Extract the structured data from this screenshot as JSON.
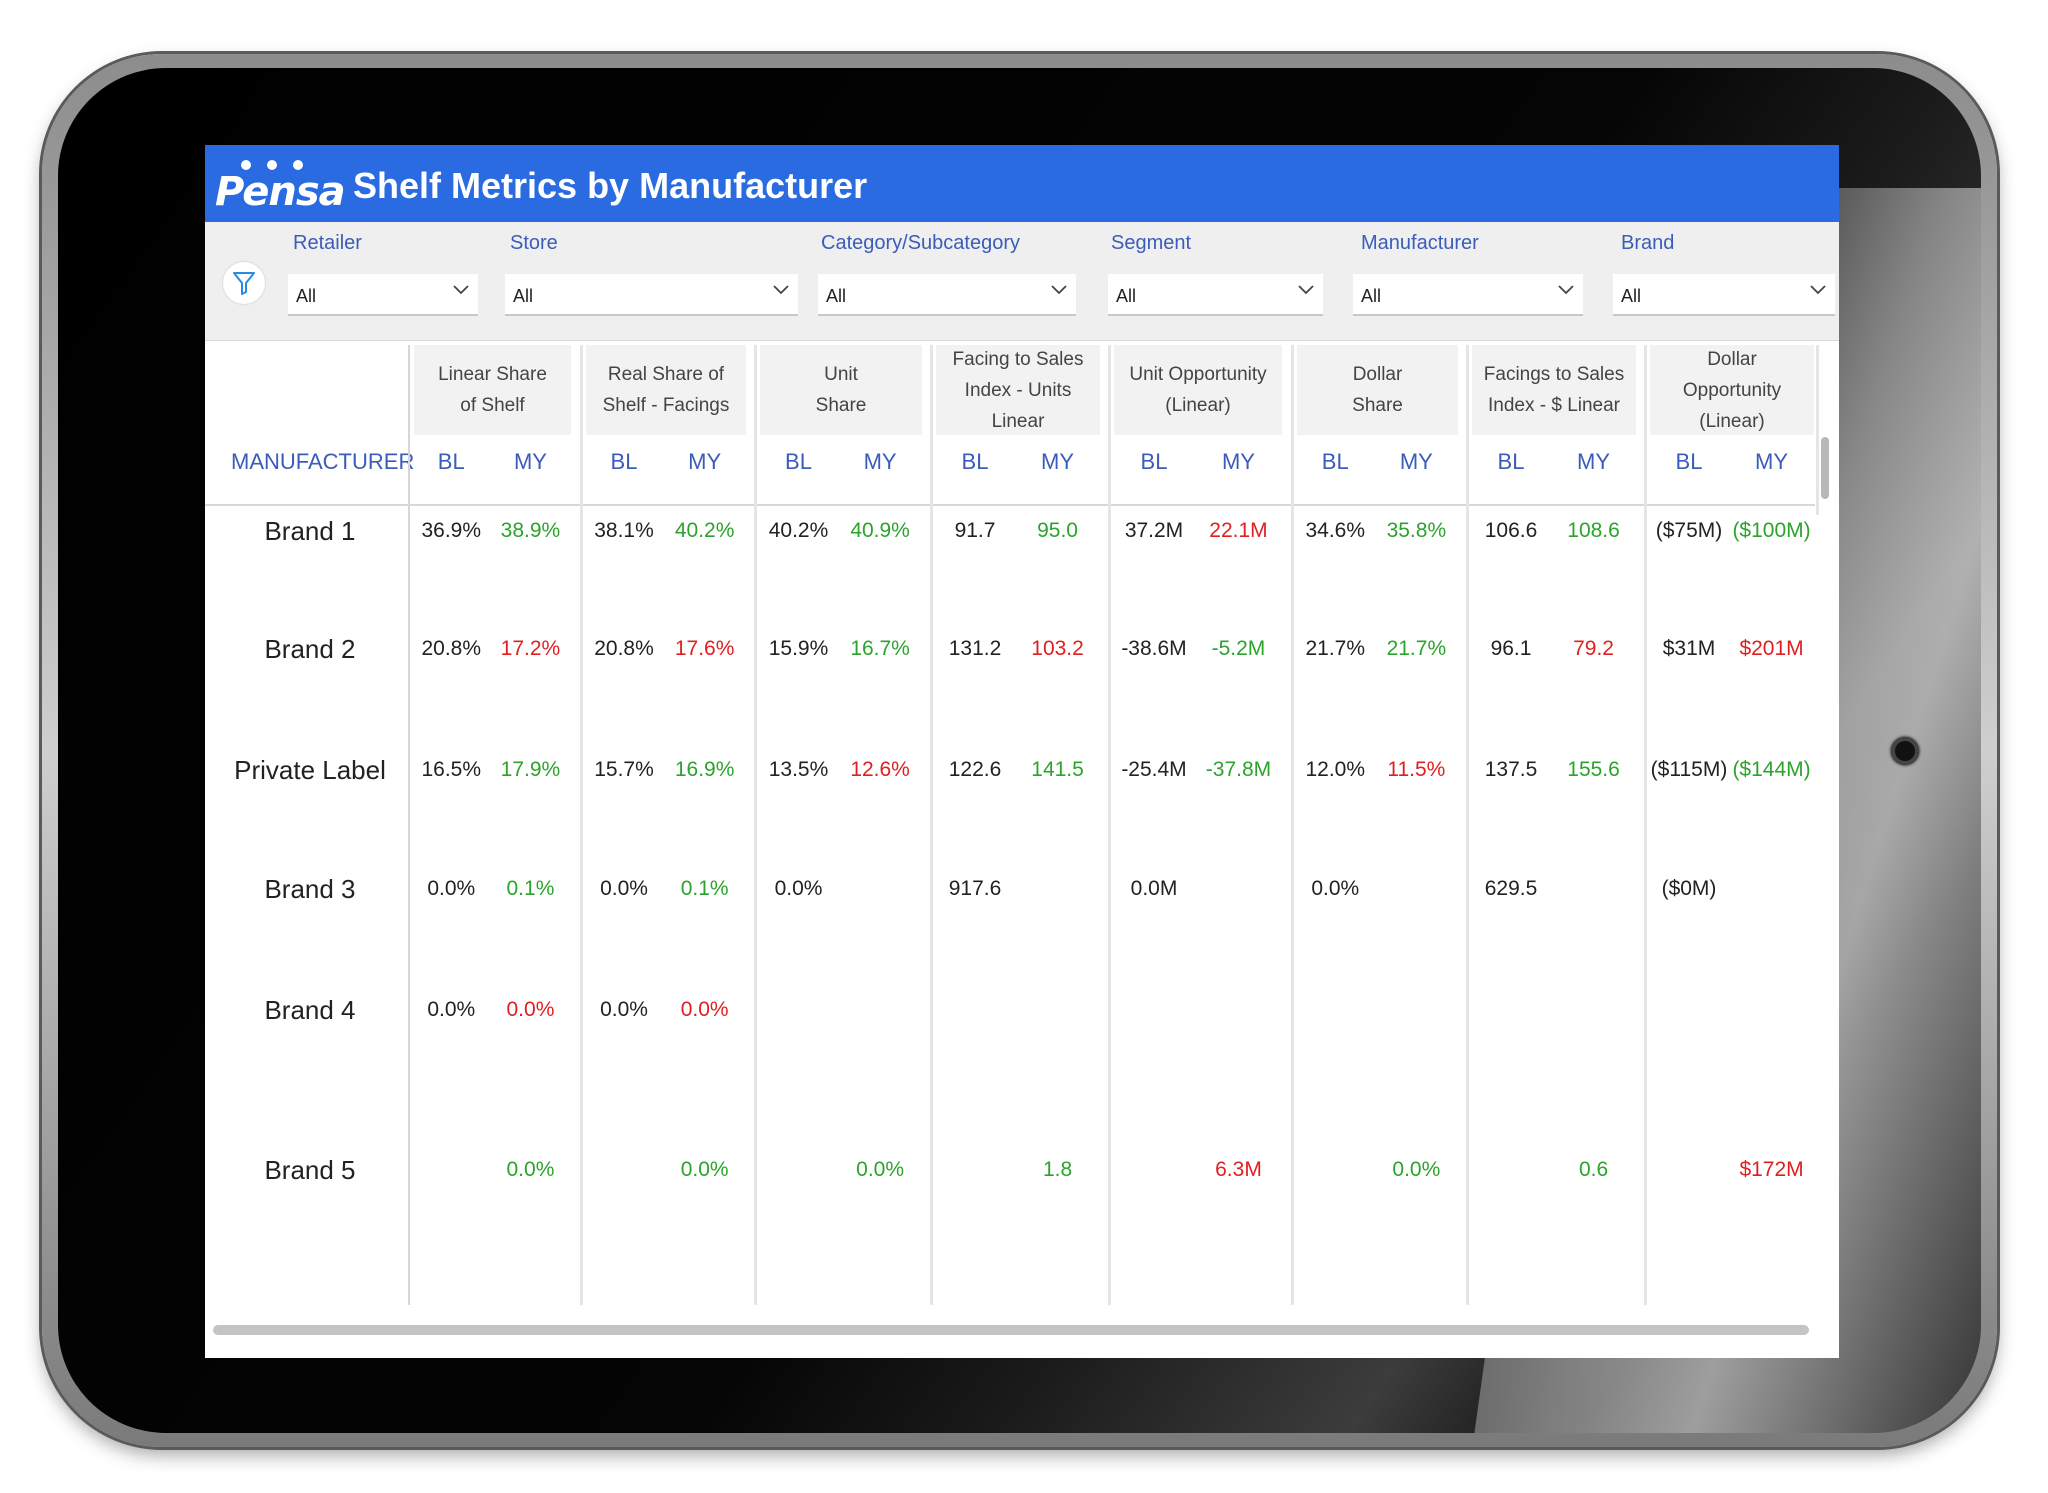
{
  "app": {
    "logo": "Pensa",
    "title": "Shelf Metrics by Manufacturer"
  },
  "filters": [
    {
      "label": "Retailer",
      "value": "All"
    },
    {
      "label": "Store",
      "value": "All"
    },
    {
      "label": "Category/Subcategory",
      "value": "All"
    },
    {
      "label": "Segment",
      "value": "All"
    },
    {
      "label": "Manufacturer",
      "value": "All"
    },
    {
      "label": "Brand",
      "value": "All"
    }
  ],
  "table": {
    "manufacturer_header": "MANUFACTURER",
    "metrics": [
      {
        "line1": "Linear Share",
        "line2": "of Shelf"
      },
      {
        "line1": "Real Share of",
        "line2": "Shelf - Facings"
      },
      {
        "line1": "Unit",
        "line2": "Share"
      },
      {
        "line1": "Facing to Sales",
        "line2": "Index - Units Linear"
      },
      {
        "line1": "Unit Opportunity",
        "line2": "(Linear)"
      },
      {
        "line1": "Dollar",
        "line2": "Share"
      },
      {
        "line1": "Facings to Sales",
        "line2": "Index - $ Linear"
      },
      {
        "line1": "Dollar Opportunity",
        "line2": "(Linear)"
      }
    ],
    "sub_labels": {
      "bl": "BL",
      "my": "MY"
    },
    "rows": [
      {
        "name": "Brand 1",
        "cells": [
          [
            "36.9%",
            "black"
          ],
          [
            "38.9%",
            "green"
          ],
          [
            "38.1%",
            "black"
          ],
          [
            "40.2%",
            "green"
          ],
          [
            "40.2%",
            "black"
          ],
          [
            "40.9%",
            "green"
          ],
          [
            "91.7",
            "black"
          ],
          [
            "95.0",
            "green"
          ],
          [
            "37.2M",
            "black"
          ],
          [
            "22.1M",
            "red"
          ],
          [
            "34.6%",
            "black"
          ],
          [
            "35.8%",
            "green"
          ],
          [
            "106.6",
            "black"
          ],
          [
            "108.6",
            "green"
          ],
          [
            "($75M)",
            "black"
          ],
          [
            "($100M)",
            "green"
          ]
        ]
      },
      {
        "name": "Brand 2",
        "cells": [
          [
            "20.8%",
            "black"
          ],
          [
            "17.2%",
            "red"
          ],
          [
            "20.8%",
            "black"
          ],
          [
            "17.6%",
            "red"
          ],
          [
            "15.9%",
            "black"
          ],
          [
            "16.7%",
            "green"
          ],
          [
            "131.2",
            "black"
          ],
          [
            "103.2",
            "red"
          ],
          [
            "-38.6M",
            "black"
          ],
          [
            "-5.2M",
            "green"
          ],
          [
            "21.7%",
            "black"
          ],
          [
            "21.7%",
            "green"
          ],
          [
            "96.1",
            "black"
          ],
          [
            "79.2",
            "red"
          ],
          [
            "$31M",
            "black"
          ],
          [
            "$201M",
            "red"
          ]
        ]
      },
      {
        "name": "Private Label",
        "cells": [
          [
            "16.5%",
            "black"
          ],
          [
            "17.9%",
            "green"
          ],
          [
            "15.7%",
            "black"
          ],
          [
            "16.9%",
            "green"
          ],
          [
            "13.5%",
            "black"
          ],
          [
            "12.6%",
            "red"
          ],
          [
            "122.6",
            "black"
          ],
          [
            "141.5",
            "green"
          ],
          [
            "-25.4M",
            "black"
          ],
          [
            "-37.8M",
            "green"
          ],
          [
            "12.0%",
            "black"
          ],
          [
            "11.5%",
            "red"
          ],
          [
            "137.5",
            "black"
          ],
          [
            "155.6",
            "green"
          ],
          [
            "($115M)",
            "black"
          ],
          [
            "($144M)",
            "green"
          ]
        ]
      },
      {
        "name": "Brand 3",
        "cells": [
          [
            "0.0%",
            "black"
          ],
          [
            "0.1%",
            "green"
          ],
          [
            "0.0%",
            "black"
          ],
          [
            "0.1%",
            "green"
          ],
          [
            "0.0%",
            "black"
          ],
          [
            "",
            ""
          ],
          [
            "917.6",
            "black"
          ],
          [
            "",
            ""
          ],
          [
            "0.0M",
            "black"
          ],
          [
            "",
            ""
          ],
          [
            "0.0%",
            "black"
          ],
          [
            "",
            ""
          ],
          [
            "629.5",
            "black"
          ],
          [
            "",
            ""
          ],
          [
            "($0M)",
            "black"
          ],
          [
            "",
            ""
          ]
        ]
      },
      {
        "name": "Brand 4",
        "cells": [
          [
            "0.0%",
            "black"
          ],
          [
            "0.0%",
            "red"
          ],
          [
            "0.0%",
            "black"
          ],
          [
            "0.0%",
            "red"
          ],
          [
            "",
            ""
          ],
          [
            "",
            ""
          ],
          [
            "",
            ""
          ],
          [
            "",
            ""
          ],
          [
            "",
            ""
          ],
          [
            "",
            ""
          ],
          [
            "",
            ""
          ],
          [
            "",
            ""
          ],
          [
            "",
            ""
          ],
          [
            "",
            ""
          ],
          [
            "",
            ""
          ],
          [
            "",
            ""
          ]
        ]
      },
      {
        "name": "Brand 5",
        "cells": [
          [
            "",
            ""
          ],
          [
            "0.0%",
            "green"
          ],
          [
            "",
            ""
          ],
          [
            "0.0%",
            "green"
          ],
          [
            "",
            ""
          ],
          [
            "0.0%",
            "green"
          ],
          [
            "",
            ""
          ],
          [
            "1.8",
            "green"
          ],
          [
            "",
            ""
          ],
          [
            "6.3M",
            "red"
          ],
          [
            "",
            ""
          ],
          [
            "0.0%",
            "green"
          ],
          [
            "",
            ""
          ],
          [
            "0.6",
            "green"
          ],
          [
            "",
            ""
          ],
          [
            "$172M",
            "red"
          ]
        ]
      }
    ]
  },
  "colors": {
    "header_blue": "#2a6be1",
    "label_blue": "#3b5cb8",
    "positive": "#2ca32c",
    "negative": "#e02020"
  },
  "icons": {
    "filter": "funnel-icon",
    "dropdown": "chevron-down-icon",
    "camera": "camera-icon"
  }
}
